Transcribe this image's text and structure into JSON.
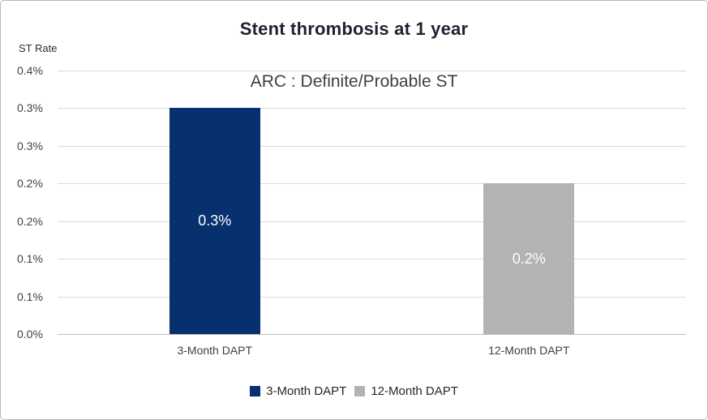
{
  "chart_data": {
    "type": "bar",
    "title": "Stent thrombosis at 1 year",
    "subtitle": "ARC : Definite/Probable ST",
    "y_axis_title": "ST Rate",
    "categories": [
      "3-Month DAPT",
      "12-Month DAPT"
    ],
    "series": [
      {
        "name": "3-Month DAPT",
        "value": 0.3,
        "data_label": "0.3%",
        "color": "#06306e"
      },
      {
        "name": "12-Month DAPT",
        "value": 0.2,
        "data_label": "0.2%",
        "color": "#b3b3b3"
      }
    ],
    "ylim": [
      0,
      0.35
    ],
    "y_tick_labels": [
      "0.4%",
      "0.3%",
      "0.3%",
      "0.2%",
      "0.2%",
      "0.1%",
      "0.1%",
      "0.0%"
    ],
    "y_tick_step": 0.05,
    "y_unit": "percent",
    "grid": "horizontal",
    "legend_position": "bottom",
    "data_label_position": "center",
    "colors": {
      "bar_navy": "#06306e",
      "bar_gray": "#b3b3b3",
      "gridline": "#d9d9d9",
      "axis_line": "#bfbfbf",
      "title_text": "#1e2230",
      "subtitle_text": "#404040",
      "tick_text": "#404040",
      "data_label_text": "#ffffff"
    }
  }
}
